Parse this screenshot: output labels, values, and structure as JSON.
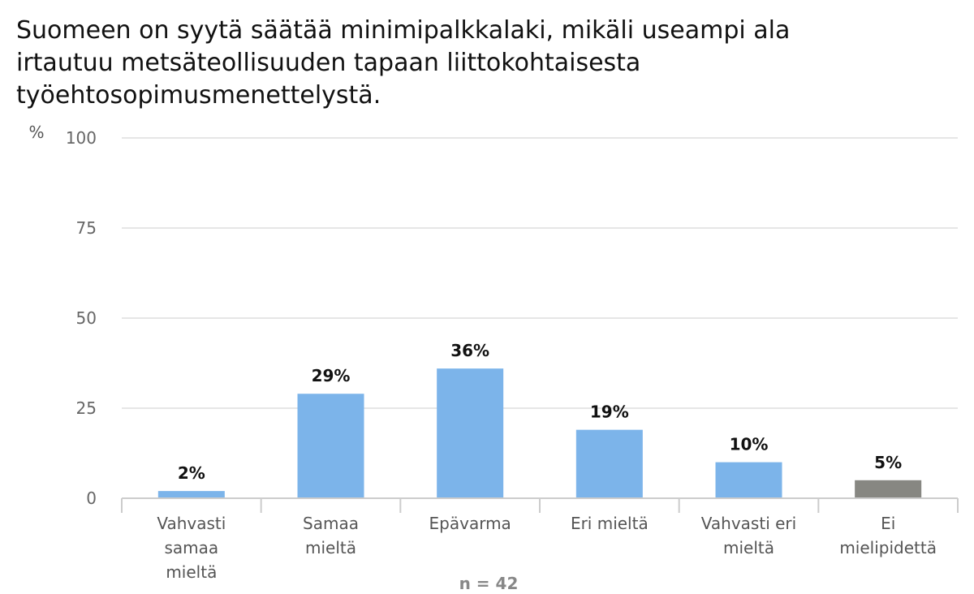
{
  "chart_data": {
    "type": "bar",
    "title_lines": [
      "Suomeen on syytä säätää minimipalkkalaki, mikäli useampi ala",
      "irtautuu metsäteollisuuden tapaan liittokohtaisesta",
      "työehtosopimusmenettelystä."
    ],
    "ylabel": "%",
    "ylim": [
      0,
      100
    ],
    "yticks": [
      0,
      25,
      50,
      75,
      100
    ],
    "grid": true,
    "categories": [
      [
        "Vahvasti",
        "samaa",
        "mieltä"
      ],
      [
        "Samaa",
        "mieltä"
      ],
      [
        "Epävarma"
      ],
      [
        "Eri mieltä"
      ],
      [
        "Vahvasti eri",
        "mieltä"
      ],
      [
        "Ei",
        "mielipidettä"
      ]
    ],
    "values": [
      2,
      29,
      36,
      19,
      10,
      5
    ],
    "data_labels": [
      "2%",
      "29%",
      "36%",
      "19%",
      "10%",
      "5%"
    ],
    "colors": [
      "#7cb4ea",
      "#7cb4ea",
      "#7cb4ea",
      "#7cb4ea",
      "#7cb4ea",
      "#878782"
    ],
    "note": "n = 42"
  }
}
